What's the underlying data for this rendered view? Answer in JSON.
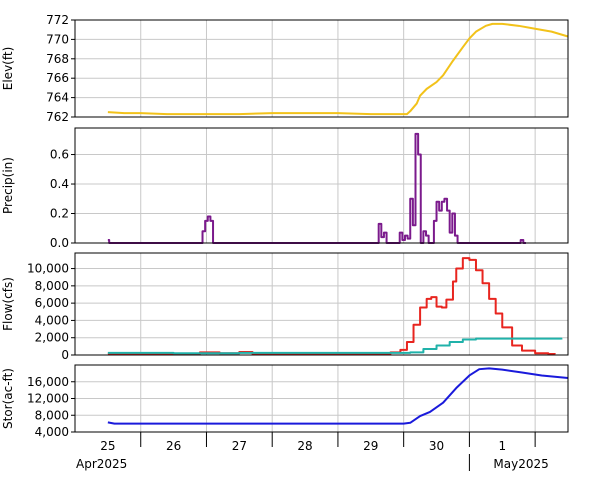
{
  "chart_data": [
    {
      "type": "line",
      "panel": "elevation",
      "ylabel": "Elev(ft)",
      "ylim": [
        762,
        772
      ],
      "yticks": [
        762,
        764,
        766,
        768,
        770,
        772
      ],
      "ytick_labels": [
        "762",
        "764",
        "766",
        "768",
        "770",
        "772"
      ],
      "grid": true,
      "series": [
        {
          "color": "#f2c21a",
          "x_days_from_apr25": [
            0,
            0.25,
            0.5,
            0.9,
            1.5,
            2.0,
            2.5,
            3.0,
            3.5,
            4.0,
            4.4,
            4.55,
            4.6,
            4.7,
            4.75,
            4.85,
            5.0,
            5.1,
            5.25,
            5.4,
            5.5,
            5.6,
            5.75,
            5.85,
            6.0,
            6.25,
            6.5,
            6.75,
            7.0
          ],
          "y": [
            762.5,
            762.4,
            762.4,
            762.3,
            762.3,
            762.3,
            762.4,
            762.4,
            762.4,
            762.3,
            762.3,
            762.3,
            762.6,
            763.4,
            764.2,
            764.9,
            765.6,
            766.3,
            767.8,
            769.2,
            770.1,
            770.8,
            771.4,
            771.6,
            771.6,
            771.4,
            771.1,
            770.8,
            770.3
          ]
        }
      ]
    },
    {
      "type": "step",
      "panel": "precipitation",
      "ylabel": "Precip(in)",
      "ylim": [
        0,
        0.78
      ],
      "yticks": [
        0,
        0.2,
        0.4,
        0.6
      ],
      "ytick_labels": [
        "0.0",
        "0.2",
        "0.4",
        "0.6"
      ],
      "grid": true,
      "series": [
        {
          "color": "#7b1a8c",
          "x_days_from_apr25": [
            0.0,
            0.02,
            0.04,
            1.44,
            1.48,
            1.52,
            1.56,
            1.6,
            1.64,
            4.12,
            4.16,
            4.2,
            4.24,
            4.28,
            4.44,
            4.48,
            4.52,
            4.56,
            4.6,
            4.64,
            4.68,
            4.72,
            4.76,
            4.8,
            4.84,
            4.88,
            4.92,
            4.96,
            5.0,
            5.04,
            5.08,
            5.12,
            5.16,
            5.2,
            5.24,
            5.28,
            5.32,
            5.36,
            6.28,
            6.32,
            6.36
          ],
          "y": [
            0.02,
            0.0,
            0.0,
            0.08,
            0.15,
            0.18,
            0.15,
            0.0,
            0.0,
            0.13,
            0.04,
            0.07,
            0.0,
            0.0,
            0.07,
            0.02,
            0.05,
            0.03,
            0.3,
            0.12,
            0.74,
            0.6,
            0.0,
            0.08,
            0.05,
            0.0,
            0.0,
            0.15,
            0.28,
            0.22,
            0.28,
            0.3,
            0.22,
            0.07,
            0.2,
            0.05,
            0.0,
            0.0,
            0.02,
            0.0,
            0.0
          ]
        }
      ]
    },
    {
      "type": "step",
      "panel": "flow",
      "ylabel": "Flow(cfs)",
      "ylim": [
        0,
        11800
      ],
      "yticks": [
        0,
        2000,
        4000,
        6000,
        8000,
        10000
      ],
      "ytick_labels": [
        "0",
        "2,000",
        "4,000",
        "6,000",
        "8,000",
        "10,000"
      ],
      "grid": true,
      "series": [
        {
          "color": "#e8251f",
          "x_days_from_apr25": [
            0,
            0.5,
            1.0,
            1.4,
            1.7,
            1.85,
            2.0,
            2.1,
            2.2,
            2.6,
            3.0,
            3.5,
            4.0,
            4.3,
            4.45,
            4.55,
            4.65,
            4.75,
            4.85,
            4.92,
            5.0,
            5.08,
            5.15,
            5.25,
            5.3,
            5.4,
            5.5,
            5.6,
            5.7,
            5.8,
            5.9,
            6.0,
            6.15,
            6.3,
            6.5,
            6.7,
            6.8
          ],
          "y": [
            150,
            150,
            150,
            300,
            200,
            200,
            350,
            350,
            150,
            150,
            150,
            150,
            150,
            300,
            600,
            1500,
            3500,
            5500,
            6500,
            6700,
            5600,
            5500,
            6400,
            8500,
            10000,
            11200,
            11000,
            9800,
            8300,
            6500,
            4800,
            3200,
            1100,
            500,
            200,
            120,
            80
          ]
        },
        {
          "color": "#20b2aa",
          "x_days_from_apr25": [
            0,
            0.5,
            1.0,
            1.5,
            2.0,
            3.0,
            4.0,
            4.5,
            4.6,
            4.8,
            5.0,
            5.2,
            5.4,
            5.6,
            5.8,
            6.0,
            6.5,
            6.7,
            6.9
          ],
          "y": [
            250,
            250,
            200,
            200,
            250,
            250,
            250,
            250,
            300,
            700,
            1100,
            1500,
            1800,
            1900,
            1900,
            1900,
            1900,
            1900,
            1800
          ]
        }
      ]
    },
    {
      "type": "line",
      "panel": "storage",
      "ylabel": "Stor(ac-ft)",
      "ylim": [
        4000,
        20000
      ],
      "yticks": [
        4000,
        8000,
        12000,
        16000
      ],
      "ytick_labels": [
        "4,000",
        "8,000",
        "12,000",
        "16,000"
      ],
      "grid": true,
      "series": [
        {
          "color": "#1a1adb",
          "x_days_from_apr25": [
            0,
            0.1,
            0.5,
            1.0,
            2.0,
            3.0,
            4.0,
            4.5,
            4.6,
            4.75,
            4.9,
            5.1,
            5.3,
            5.5,
            5.65,
            5.8,
            6.0,
            6.3,
            6.6,
            7.0
          ],
          "y": [
            6300,
            6000,
            6000,
            6000,
            6000,
            6000,
            6000,
            6000,
            6200,
            7800,
            8800,
            11000,
            14500,
            17500,
            19000,
            19200,
            18900,
            18200,
            17500,
            16900
          ]
        }
      ]
    }
  ],
  "x_axis": {
    "day_labels": [
      "25",
      "26",
      "27",
      "28",
      "29",
      "30",
      "1"
    ],
    "month_labels": [
      "Apr2025",
      "May2025"
    ]
  }
}
